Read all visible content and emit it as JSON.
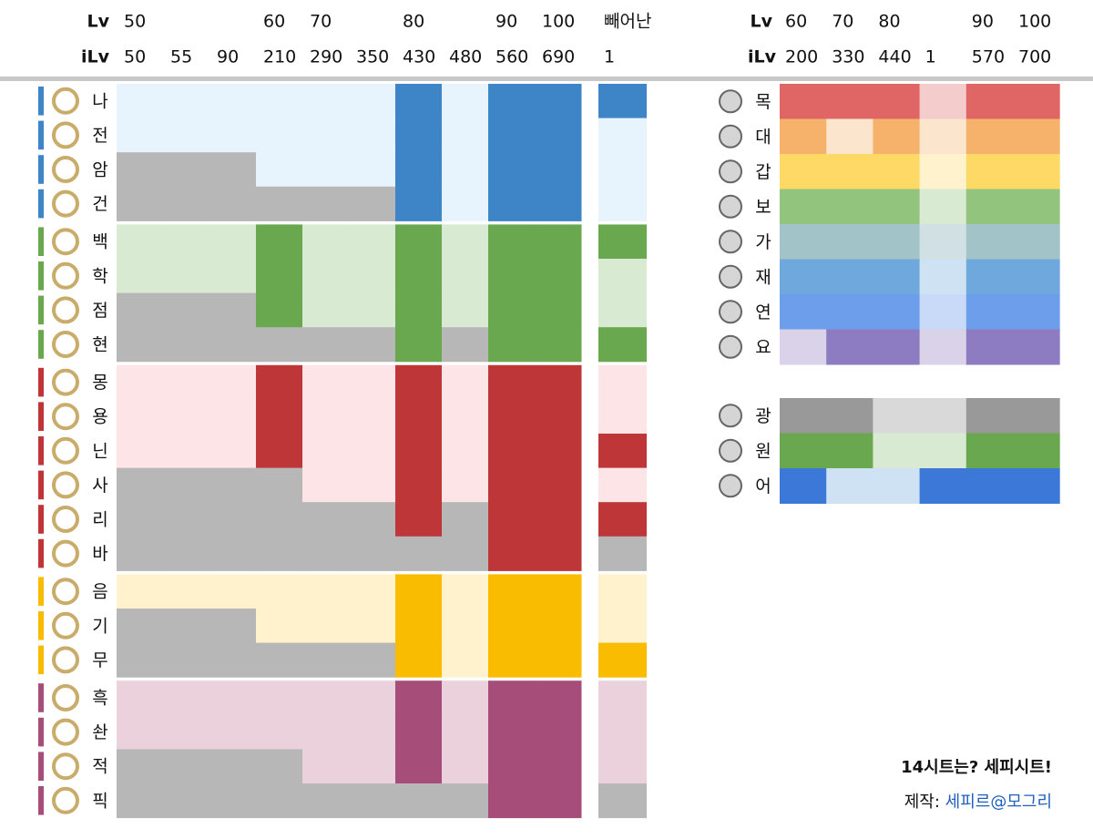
{
  "left_header": {
    "lv_label": "Lv",
    "ilv_label": "iLv",
    "lv": [
      "50",
      null,
      null,
      "60",
      "70",
      null,
      "80",
      null,
      "90",
      "100"
    ],
    "ilv": [
      "50",
      "55",
      "90",
      "210",
      "290",
      "350",
      "430",
      "480",
      "560",
      "690"
    ],
    "extra_lv": "빼어난",
    "extra_ilv": "1"
  },
  "right_header": {
    "lv_label": "Lv",
    "ilv_label": "iLv",
    "lv": [
      "60",
      "70",
      "80",
      null,
      "90",
      "100"
    ],
    "ilv": [
      "200",
      "330",
      "440",
      "1",
      "570",
      "700"
    ]
  },
  "unavailable_color": "#b7b7b7",
  "job_groups": [
    {
      "color": "#3d85c6",
      "light": "#e8f4fd",
      "jobs": [
        {
          "name": "나",
          "cells": "lllllldldd",
          "extra": "d"
        },
        {
          "name": "전",
          "cells": "lllllldldd",
          "extra": "l"
        },
        {
          "name": "암",
          "cells": "gggllldldd",
          "extra": "l"
        },
        {
          "name": "건",
          "cells": "ggggggdldd",
          "extra": "l"
        }
      ]
    },
    {
      "color": "#6aa84f",
      "light": "#d9ead3",
      "jobs": [
        {
          "name": "백",
          "cells": "llldlldldd",
          "extra": "d"
        },
        {
          "name": "학",
          "cells": "llldlldldd",
          "extra": "l"
        },
        {
          "name": "점",
          "cells": "gggdlldldd",
          "extra": "l"
        },
        {
          "name": "현",
          "cells": "ggggggdgdd",
          "extra": "d"
        }
      ]
    },
    {
      "color": "#be3637",
      "light": "#fde4e6",
      "jobs": [
        {
          "name": "몽",
          "cells": "llldlldldd",
          "extra": "l"
        },
        {
          "name": "용",
          "cells": "llldlldldd",
          "extra": "l"
        },
        {
          "name": "닌",
          "cells": "llldlldldd",
          "extra": "d"
        },
        {
          "name": "사",
          "cells": "gggglldldd",
          "extra": "l"
        },
        {
          "name": "리",
          "cells": "ggggggdgdd",
          "extra": "d"
        },
        {
          "name": "바",
          "cells": "ggggggggdd",
          "extra": "g"
        }
      ]
    },
    {
      "color": "#f9bc00",
      "light": "#fff2cc",
      "jobs": [
        {
          "name": "음",
          "cells": "lllllldldd",
          "extra": "l"
        },
        {
          "name": "기",
          "cells": "gggllldldd",
          "extra": "l"
        },
        {
          "name": "무",
          "cells": "ggggggdldd",
          "extra": "d"
        }
      ]
    },
    {
      "color": "#a64d79",
      "light": "#ead1dc",
      "jobs": [
        {
          "name": "흑",
          "cells": "lllllldldd",
          "extra": "l"
        },
        {
          "name": "솬",
          "cells": "lllllldldd",
          "extra": "l"
        },
        {
          "name": "적",
          "cells": "gggglldldd",
          "extra": "l"
        },
        {
          "name": "픽",
          "cells": "ggggggggdd",
          "extra": "g"
        }
      ]
    }
  ],
  "crafter_groups": [
    {
      "jobs": [
        {
          "name": "목",
          "color": "#e06666",
          "light": "#f4cccc",
          "cells": "dddldd"
        },
        {
          "name": "대",
          "color": "#f6b26b",
          "light": "#fce5cd",
          "cells": "dldldd"
        },
        {
          "name": "갑",
          "color": "#ffd966",
          "light": "#fff2cc",
          "cells": "dddldd"
        },
        {
          "name": "보",
          "color": "#93c47d",
          "light": "#d9ead3",
          "cells": "dddldd"
        },
        {
          "name": "가",
          "color": "#a2c4c9",
          "light": "#d0e0e3",
          "cells": "dddldd"
        },
        {
          "name": "재",
          "color": "#6fa8dc",
          "light": "#cfe2f3",
          "cells": "dddldd"
        },
        {
          "name": "연",
          "color": "#6d9eeb",
          "light": "#c9daf8",
          "cells": "dddldd"
        },
        {
          "name": "요",
          "color": "#8e7cc3",
          "light": "#d9d2e9",
          "cells": "lddldd"
        }
      ]
    },
    {
      "jobs": [
        {
          "name": "광",
          "color": "#999999",
          "light": "#d9d9d9",
          "cells": "ddlldd"
        },
        {
          "name": "원",
          "color": "#6aa84f",
          "light": "#d9ead3",
          "cells": "ddlldd"
        },
        {
          "name": "어",
          "color": "#3c78d8",
          "light": "#cfe2f3",
          "cells": "dllddd"
        }
      ]
    }
  ],
  "footer": {
    "slogan": "14시트는? 세피시트!",
    "credit_label": "제작:",
    "credit_name": "세피르@모그리"
  }
}
